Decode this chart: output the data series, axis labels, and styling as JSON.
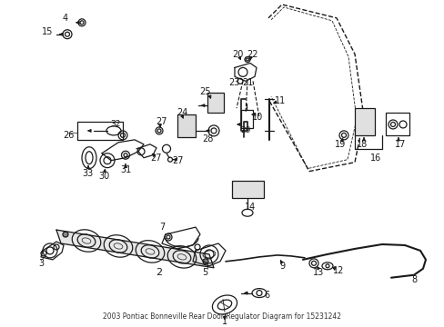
{
  "title": "2003 Pontiac Bonneville Rear Door Regulator Diagram for 15231242",
  "bg": "#ffffff",
  "lc": "#1a1a1a",
  "figw": 4.89,
  "figh": 3.6,
  "dpi": 100
}
